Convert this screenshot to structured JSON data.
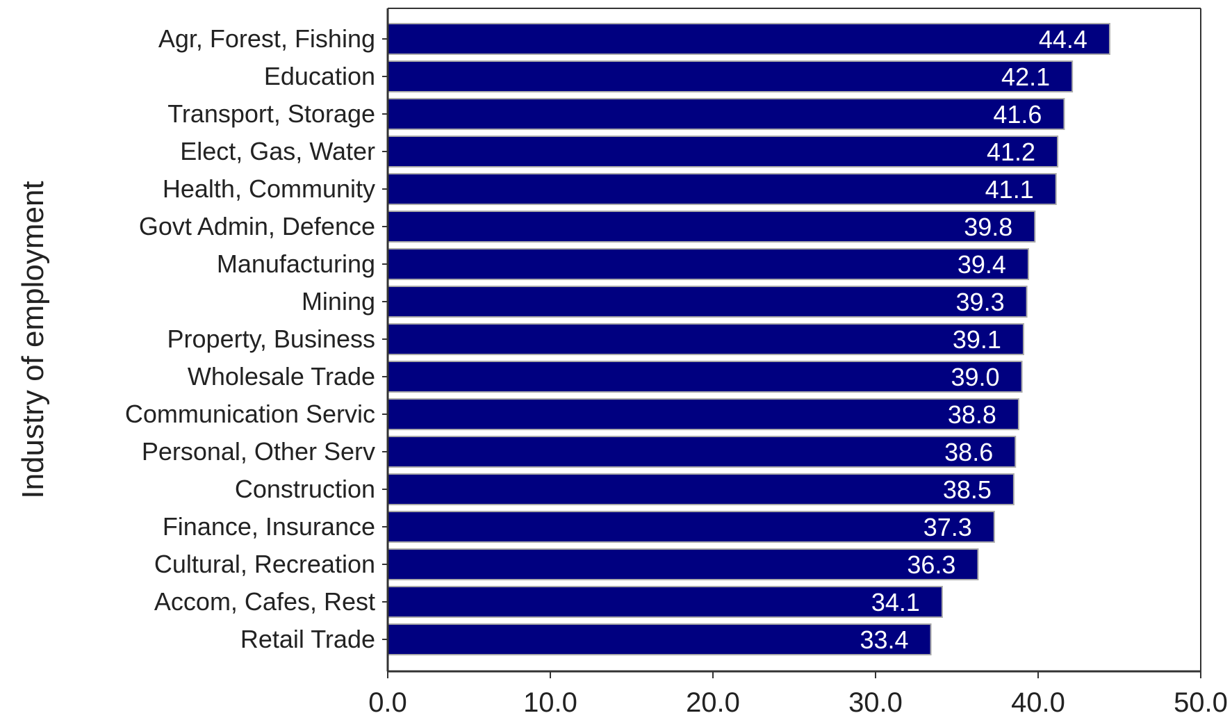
{
  "chart_data": {
    "type": "bar",
    "orientation": "horizontal",
    "title": "",
    "xlabel": "",
    "ylabel": "Industry of employment",
    "xlim": [
      0,
      50
    ],
    "x_ticks": [
      "0.0",
      "10.0",
      "20.0",
      "30.0",
      "40.0",
      "50.0"
    ],
    "grid": false,
    "legend": "none",
    "bar_color": "#000080",
    "label_color": "#ffffff",
    "categories": [
      "Agr, Forest, Fishing",
      "Education",
      "Transport, Storage",
      "Elect, Gas, Water",
      "Health, Community",
      "Govt Admin, Defence",
      "Manufacturing",
      "Mining",
      "Property, Business",
      "Wholesale Trade",
      "Communication Servic",
      "Personal, Other Serv",
      "Construction",
      "Finance, Insurance",
      "Cultural, Recreation",
      "Accom, Cafes, Rest",
      "Retail Trade"
    ],
    "values": [
      44.4,
      42.1,
      41.6,
      41.2,
      41.1,
      39.8,
      39.4,
      39.3,
      39.1,
      39.0,
      38.8,
      38.6,
      38.5,
      37.3,
      36.3,
      34.1,
      33.4
    ],
    "value_labels": [
      "44.4",
      "42.1",
      "41.6",
      "41.2",
      "41.1",
      "39.8",
      "39.4",
      "39.3",
      "39.1",
      "39.0",
      "38.8",
      "38.6",
      "38.5",
      "37.3",
      "36.3",
      "34.1",
      "33.4"
    ]
  }
}
